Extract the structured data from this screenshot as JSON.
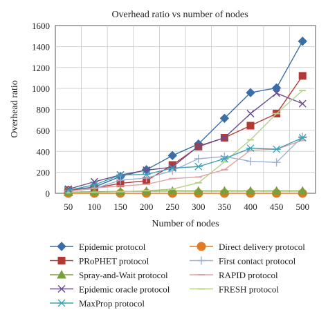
{
  "chart_data": {
    "type": "line",
    "title": "Overhead ratio vs number of nodes",
    "xlabel": "Number of nodes",
    "ylabel": "Overhead ratio",
    "x": [
      50,
      100,
      150,
      200,
      250,
      300,
      350,
      400,
      450,
      500
    ],
    "x_ticks": [
      "50",
      "100",
      "150",
      "200",
      "250",
      "300",
      "350",
      "400",
      "450",
      "500"
    ],
    "ylim": [
      0,
      1600
    ],
    "y_ticks": [
      "0",
      "200",
      "400",
      "600",
      "800",
      "1000",
      "1200",
      "1400",
      "1600"
    ],
    "grid": true,
    "legend_position": "bottom",
    "series": [
      {
        "name": "Epidemic protocol",
        "color": "#3a6ea5",
        "marker": "diamond",
        "values": [
          30,
          60,
          160,
          225,
          360,
          470,
          715,
          960,
          1005,
          1450
        ]
      },
      {
        "name": "Direct delivery protocol",
        "color": "#e07b24",
        "marker": "circle",
        "values": [
          0,
          0,
          0,
          0,
          0,
          0,
          0,
          0,
          0,
          0
        ]
      },
      {
        "name": "PRoPHET protocol",
        "color": "#b23a36",
        "marker": "square",
        "values": [
          30,
          50,
          95,
          120,
          270,
          445,
          530,
          645,
          760,
          1120
        ]
      },
      {
        "name": "First contact protocol",
        "color": "#9bb0d6",
        "marker": "plus",
        "values": [
          20,
          45,
          125,
          145,
          215,
          330,
          350,
          305,
          295,
          540
        ]
      },
      {
        "name": "Spray-and-Wait protocol",
        "color": "#7aa03c",
        "marker": "triangle",
        "values": [
          10,
          15,
          18,
          20,
          22,
          22,
          22,
          22,
          22,
          22
        ]
      },
      {
        "name": "RAPID protocol",
        "color": "#e3a0a0",
        "marker": "dash",
        "values": [
          20,
          50,
          70,
          85,
          140,
          155,
          225,
          410,
          420,
          505
        ]
      },
      {
        "name": "Epidemic oracle protocol",
        "color": "#6b4e8f",
        "marker": "x",
        "values": [
          40,
          110,
          175,
          220,
          250,
          450,
          530,
          760,
          955,
          855
        ]
      },
      {
        "name": "FRESH protocol",
        "color": "#b8d08a",
        "marker": "dash",
        "values": [
          5,
          10,
          15,
          25,
          40,
          100,
          300,
          510,
          760,
          980
        ]
      },
      {
        "name": "MaxProp protocol",
        "color": "#3aa3b5",
        "marker": "asterisk",
        "values": [
          30,
          80,
          175,
          180,
          240,
          255,
          330,
          430,
          420,
          530
        ]
      }
    ]
  }
}
